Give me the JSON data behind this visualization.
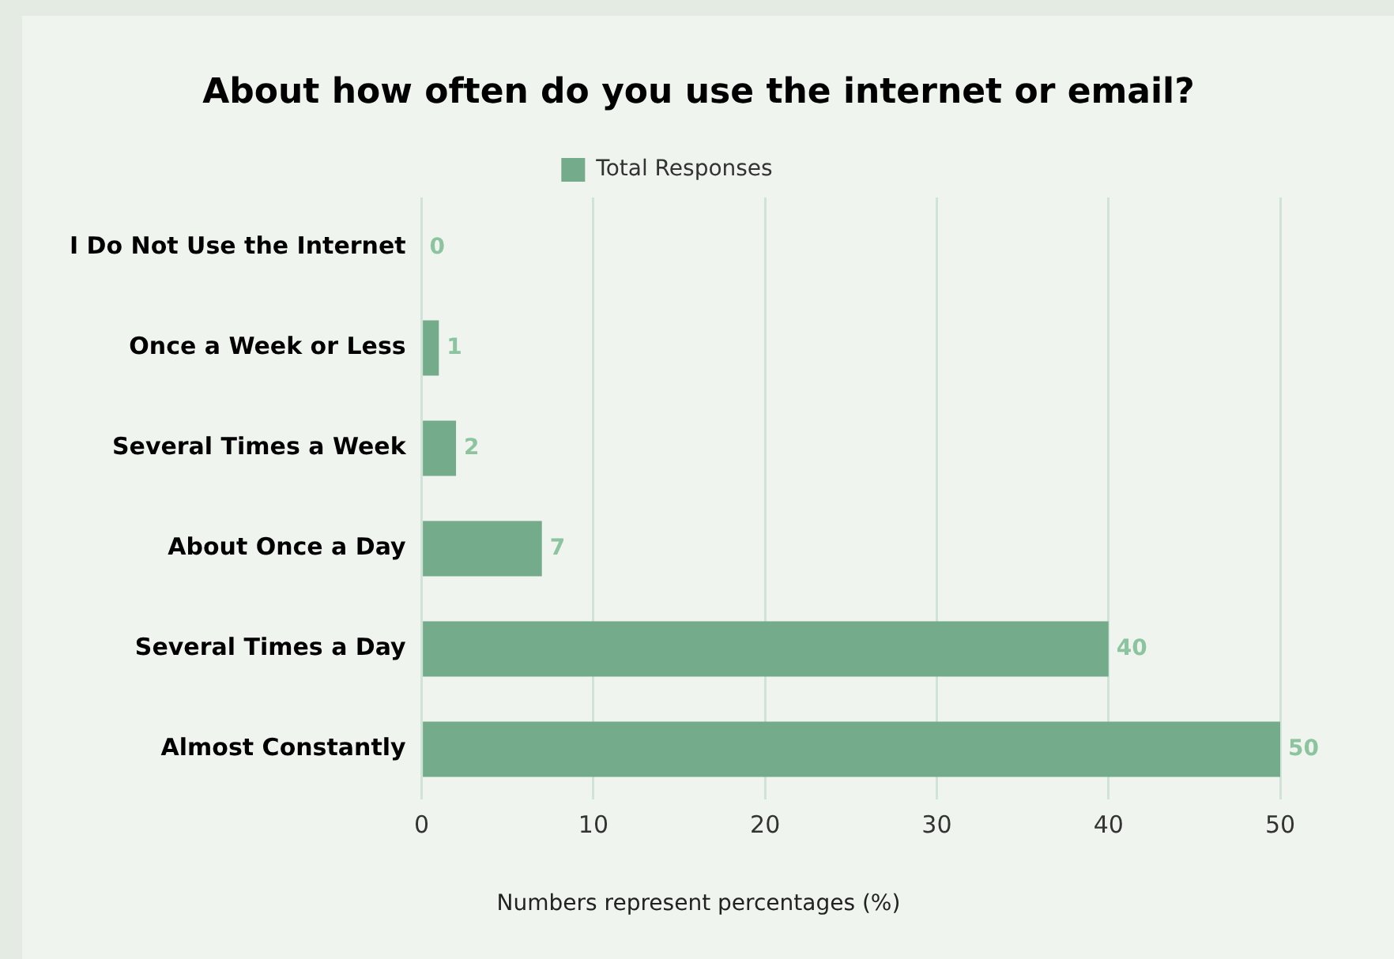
{
  "chart_data": {
    "type": "bar",
    "orientation": "horizontal",
    "title": "About how often do you use the internet or email?",
    "categories": [
      "I Do Not Use the Internet",
      "Once a Week or Less",
      "Several Times a Week",
      "About Once a Day",
      "Several Times a Day",
      "Almost Constantly"
    ],
    "series": [
      {
        "name": "Total Responses",
        "color": "#74ab8a",
        "values": [
          0,
          1,
          2,
          7,
          40,
          50
        ]
      }
    ],
    "xlim": [
      0,
      50
    ],
    "xticks": [
      0,
      10,
      20,
      30,
      40,
      50
    ],
    "grid": "x",
    "legend": "top",
    "data_labels": true,
    "annotations": [
      "Numbers represent percentages (%)"
    ]
  }
}
